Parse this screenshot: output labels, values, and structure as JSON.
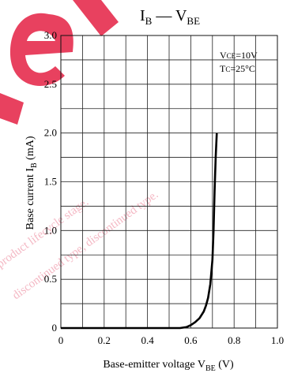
{
  "chart_data": {
    "type": "line",
    "title": {
      "main": "I",
      "main_sub": "B",
      "dash": " — ",
      "second": "V",
      "second_sub": "BE"
    },
    "xlabel": {
      "main": "Base-emitter voltage  V",
      "sub": "BE",
      "unit": "  (V)"
    },
    "ylabel": {
      "main": "Base current  I",
      "sub": "B",
      "unit": "  (mA)"
    },
    "xlim": [
      0,
      1.0
    ],
    "ylim": [
      0,
      3.0
    ],
    "x_ticks": [
      {
        "value": 0,
        "label": "0"
      },
      {
        "value": 0.2,
        "label": "0.2"
      },
      {
        "value": 0.4,
        "label": "0.4"
      },
      {
        "value": 0.6,
        "label": "0.6"
      },
      {
        "value": 0.8,
        "label": "0.8"
      },
      {
        "value": 1.0,
        "label": "1.0"
      }
    ],
    "y_ticks": [
      {
        "value": 0,
        "label": "0"
      },
      {
        "value": 0.5,
        "label": "0.5"
      },
      {
        "value": 1.0,
        "label": "1.0"
      },
      {
        "value": 1.5,
        "label": "1.5"
      },
      {
        "value": 2.0,
        "label": "2.0"
      },
      {
        "value": 2.5,
        "label": "2.5"
      },
      {
        "value": 3.0,
        "label": "3.0"
      }
    ],
    "x_grid_step": 0.1,
    "y_grid_step": 0.25,
    "grid": true,
    "annotations": [
      {
        "text_main": "V",
        "text_sub": "CE",
        "text_rest": "=10V"
      },
      {
        "text_main": "T",
        "text_sub": "C",
        "text_rest": "=25°C"
      }
    ],
    "annotation_placement": "top-right",
    "series": [
      {
        "x": [
          0,
          0.55,
          0.58,
          0.6,
          0.62,
          0.64,
          0.66,
          0.67,
          0.68,
          0.69,
          0.7,
          0.705,
          0.71,
          0.715,
          0.72
        ],
        "y": [
          0,
          0,
          0.01,
          0.03,
          0.06,
          0.1,
          0.17,
          0.23,
          0.31,
          0.45,
          0.7,
          1.0,
          1.4,
          1.75,
          2.0
        ]
      }
    ]
  },
  "watermark": {
    "lines": [
      "product lifecycle stage.",
      "discontinued type, discontinued type."
    ],
    "color": "#f4b8c4"
  },
  "logo_color": "#e8415f"
}
